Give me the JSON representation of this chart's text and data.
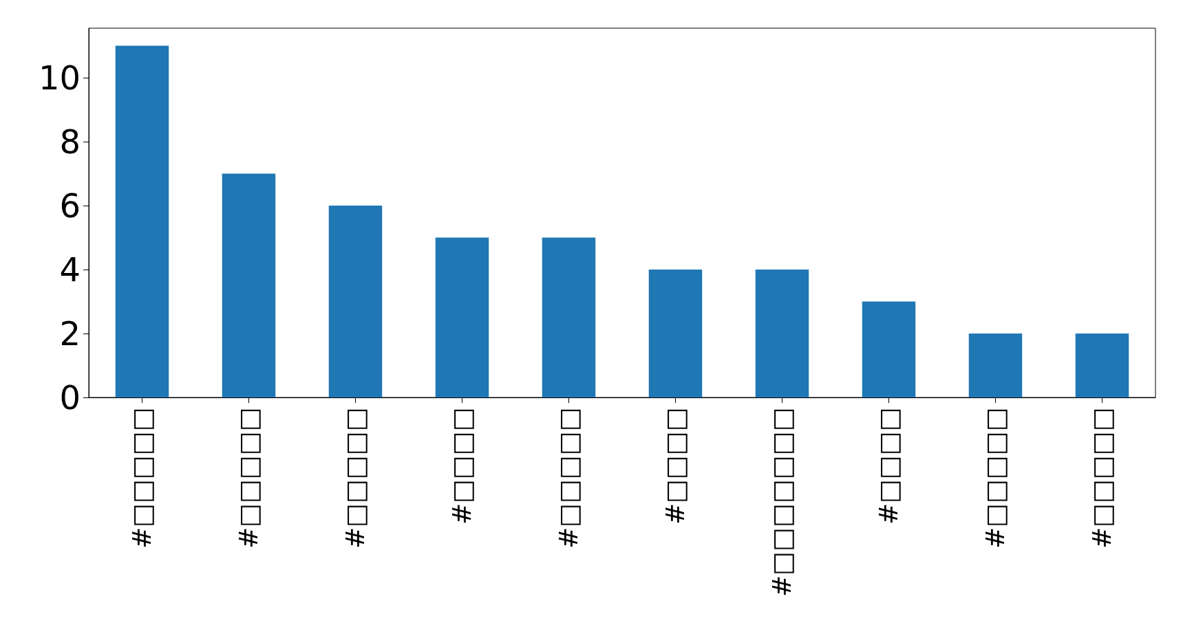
{
  "chart_data": {
    "type": "bar",
    "categories": [
      "#□□□□□",
      "#□□□□□",
      "#□□□□□",
      "#□□□□",
      "#□□□□□",
      "#□□□□",
      "#□□□□□□□",
      "#□□□□",
      "#□□□□□",
      "#□□□□□"
    ],
    "values": [
      11,
      7,
      6,
      5,
      5,
      4,
      4,
      3,
      2,
      2
    ],
    "color": "#1f77b4",
    "ylim": [
      0,
      11.55
    ],
    "yticks": [
      0,
      2,
      4,
      6,
      8,
      10
    ],
    "grid": false
  }
}
